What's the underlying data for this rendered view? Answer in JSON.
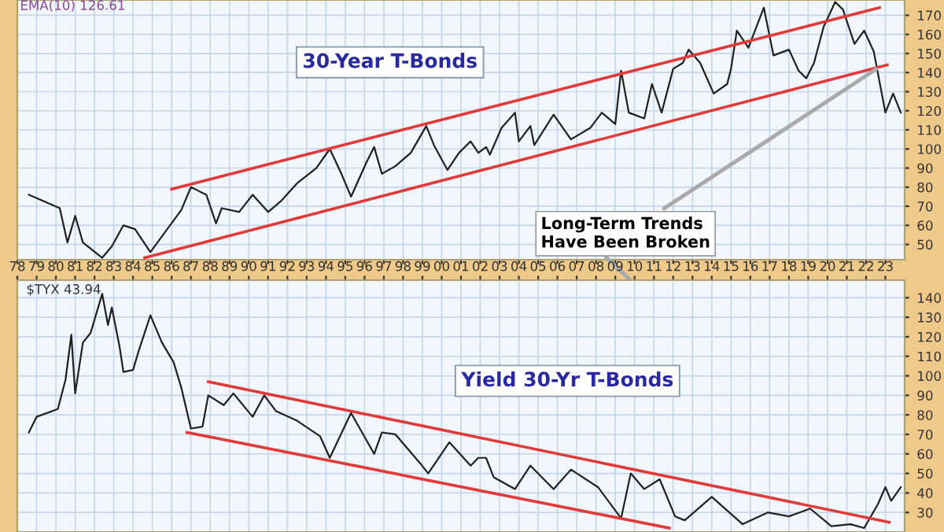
{
  "chart_data": [
    {
      "type": "line",
      "title": "30-Year T-Bonds",
      "xlim": [
        1978,
        2024
      ],
      "ylim": [
        42,
        178
      ],
      "yticks": [
        50,
        60,
        70,
        80,
        90,
        100,
        110,
        120,
        130,
        140,
        150,
        160,
        170
      ],
      "xticks": [
        1978,
        1979,
        1980,
        1981,
        1982,
        1983,
        1984,
        1985,
        1986,
        1987,
        1988,
        1989,
        1990,
        1991,
        1992,
        1993,
        1994,
        1995,
        1996,
        1997,
        1998,
        1999,
        2000,
        2001,
        2002,
        2003,
        2004,
        2005,
        2006,
        2007,
        2008,
        2009,
        2010,
        2011,
        2012,
        2013,
        2014,
        2015,
        2016,
        2017,
        2018,
        2019,
        2020,
        2021,
        2022,
        2023
      ],
      "tick_labels": "y",
      "grid": true,
      "annotations": [
        "EMA(10) 126.61",
        {
          "text": "Long-Term Trends\nHave Been Broken",
          "x": 2022.7,
          "y": 143
        }
      ],
      "series": [
        {
          "color": "#202020",
          "x": [
            1978.6,
            1980.2,
            1980.6,
            1981.0,
            1981.4,
            1982.4,
            1982.9,
            1983.5,
            1984.1,
            1984.9,
            1985.7,
            1986.5,
            1987.0,
            1987.8,
            1988.3,
            1988.6,
            1989.5,
            1990.2,
            1991.0,
            1991.7,
            1992.5,
            1993.5,
            1994.2,
            1994.8,
            1995.3,
            1996.1,
            1996.5,
            1996.9,
            1997.6,
            1998.4,
            1999.2,
            1999.6,
            2000.3,
            2000.9,
            2001.5,
            2001.9,
            2002.3,
            2002.5,
            2003.1,
            2003.8,
            2004.0,
            2004.6,
            2004.8,
            2005.8,
            2006.7,
            2007.7,
            2008.3,
            2009.0,
            2009.3,
            2009.7,
            2010.5,
            2010.9,
            2011.4,
            2012.0,
            2012.5,
            2012.8,
            2013.4,
            2014.1,
            2014.8,
            2015.0,
            2015.3,
            2015.9,
            2016.7,
            2017.2,
            2018.0,
            2018.5,
            2018.9,
            2019.3,
            2019.8,
            2020.4,
            2020.8,
            2021.4,
            2021.9,
            2022.4,
            2023.0,
            2023.4,
            2023.8
          ],
          "values": [
            76,
            69,
            51,
            65,
            51,
            43,
            49,
            60,
            58,
            46,
            57,
            68,
            80,
            76,
            61,
            69,
            67,
            76,
            67,
            73,
            82,
            90,
            100,
            87,
            75,
            93,
            101,
            87,
            91,
            98,
            112,
            102,
            89,
            98,
            104,
            98,
            101,
            97,
            111,
            119,
            104,
            112,
            102,
            118,
            105,
            111,
            119,
            113,
            141,
            119,
            116,
            134,
            119,
            142,
            145,
            152,
            145,
            129,
            134,
            142,
            162,
            153,
            174,
            149,
            152,
            141,
            137,
            145,
            164,
            177,
            173,
            155,
            162,
            151,
            119,
            129,
            119
          ]
        },
        {
          "type": "line",
          "color": "#e03a3a",
          "x": [
            1986.0,
            2022.7
          ],
          "values": [
            79,
            174
          ]
        },
        {
          "type": "line",
          "color": "#e03a3a",
          "x": [
            1984.6,
            2023.1
          ],
          "values": [
            43,
            144
          ]
        }
      ]
    },
    {
      "type": "line",
      "title": "Yield 30-Yr T-Bonds",
      "xlim": [
        1978,
        2024
      ],
      "ylim": [
        20,
        149
      ],
      "yticks": [
        30,
        40,
        50,
        60,
        70,
        80,
        90,
        100,
        110,
        120,
        130,
        140
      ],
      "xticks": [
        {
          "value": 1978,
          "label": "78"
        },
        {
          "value": 1979,
          "label": "79"
        },
        {
          "value": 1980,
          "label": "80"
        },
        {
          "value": 1981,
          "label": "81"
        },
        {
          "value": 1982,
          "label": "82"
        },
        {
          "value": 1983,
          "label": "83"
        },
        {
          "value": 1984,
          "label": "84"
        },
        {
          "value": 1985,
          "label": "85"
        },
        {
          "value": 1986,
          "label": "86"
        },
        {
          "value": 1987,
          "label": "87"
        },
        {
          "value": 1988,
          "label": "88"
        },
        {
          "value": 1989,
          "label": "89"
        },
        {
          "value": 1990,
          "label": "90"
        },
        {
          "value": 1991,
          "label": "91"
        },
        {
          "value": 1992,
          "label": "92"
        },
        {
          "value": 1993,
          "label": "93"
        },
        {
          "value": 1994,
          "label": "94"
        },
        {
          "value": 1995,
          "label": "95"
        },
        {
          "value": 1996,
          "label": "96"
        },
        {
          "value": 1997,
          "label": "97"
        },
        {
          "value": 1998,
          "label": "98"
        },
        {
          "value": 1999,
          "label": "99"
        },
        {
          "value": 2000,
          "label": "00"
        },
        {
          "value": 2001,
          "label": "01"
        },
        {
          "value": 2002,
          "label": "02"
        },
        {
          "value": 2003,
          "label": "03"
        },
        {
          "value": 2004,
          "label": "04"
        },
        {
          "value": 2005,
          "label": "05"
        },
        {
          "value": 2006,
          "label": "06"
        },
        {
          "value": 2007,
          "label": "07"
        },
        {
          "value": 2008,
          "label": "08"
        },
        {
          "value": 2009,
          "label": "09"
        },
        {
          "value": 2010,
          "label": "10"
        },
        {
          "value": 2011,
          "label": "11"
        },
        {
          "value": 2012,
          "label": "12"
        },
        {
          "value": 2013,
          "label": "13"
        },
        {
          "value": 2014,
          "label": "14"
        },
        {
          "value": 2015,
          "label": "15"
        },
        {
          "value": 2016,
          "label": "16"
        },
        {
          "value": 2017,
          "label": "17"
        },
        {
          "value": 2018,
          "label": "18"
        },
        {
          "value": 2019,
          "label": "19"
        },
        {
          "value": 2020,
          "label": "20"
        },
        {
          "value": 2021,
          "label": "21"
        },
        {
          "value": 2022,
          "label": "22"
        },
        {
          "value": 2023,
          "label": "23"
        }
      ],
      "grid": true,
      "annotations": [
        "$TYX 43.94"
      ],
      "series": [
        {
          "color": "#202020",
          "x": [
            1978.6,
            1979.0,
            1980.1,
            1980.5,
            1980.8,
            1981.0,
            1981.4,
            1981.8,
            1982.4,
            1982.7,
            1982.9,
            1983.3,
            1983.5,
            1984.0,
            1984.3,
            1984.9,
            1985.5,
            1986.1,
            1986.5,
            1987.0,
            1987.6,
            1987.9,
            1988.7,
            1989.2,
            1990.2,
            1990.8,
            1991.4,
            1992.5,
            1993.7,
            1994.2,
            1995.3,
            1996.5,
            1996.9,
            1997.6,
            1998.9,
            1999.3,
            2000.4,
            2001.5,
            2001.9,
            2002.3,
            2002.7,
            2003.8,
            2004.6,
            2005.8,
            2006.7,
            2008.1,
            2009.3,
            2009.8,
            2010.5,
            2011.3,
            2012.1,
            2012.6,
            2014.0,
            2015.6,
            2016.9,
            2018.0,
            2019.1,
            2020.2,
            2021.2,
            2021.9,
            2022.6,
            2023.0,
            2023.3,
            2023.8
          ],
          "values": [
            71,
            79,
            83,
            98,
            121,
            91,
            117,
            122,
            142,
            126,
            135,
            115,
            102,
            103,
            113,
            131,
            117,
            107,
            94,
            73,
            74,
            90,
            85,
            91,
            79,
            90,
            82,
            77,
            69,
            58,
            81,
            60,
            71,
            70,
            55,
            50,
            66,
            54,
            58,
            58,
            48,
            42,
            54,
            42,
            52,
            43,
            27,
            50,
            42,
            47,
            28,
            26,
            38,
            24,
            30,
            28,
            32,
            23,
            24,
            22,
            34,
            43,
            36,
            43
          ]
        },
        {
          "type": "line",
          "color": "#e03a3a",
          "x": [
            1987.9,
            2023.2
          ],
          "values": [
            97,
            25
          ]
        },
        {
          "type": "line",
          "color": "#e03a3a",
          "x": [
            1986.8,
            2011.8
          ],
          "values": [
            71,
            22
          ]
        }
      ]
    }
  ]
}
